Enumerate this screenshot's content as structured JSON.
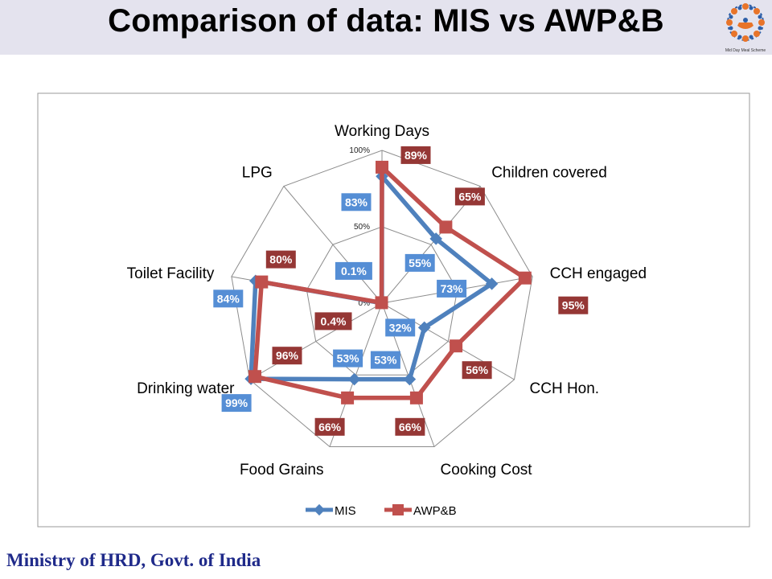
{
  "slide": {
    "title": "Comparison of data: MIS vs AWP&B",
    "footer": "Ministry of HRD, Govt. of India",
    "logo_icon": "mid-day-meal-scheme-logo",
    "logo_caption": "Mid Day Meal Scheme"
  },
  "colors": {
    "header_bg": "#e4e3ee",
    "mis": "#4f81bd",
    "awpb": "#c0504d",
    "mis_label_bg": "#558ed5",
    "awpb_label_bg": "#953735",
    "footer_text": "#1f2a8a"
  },
  "chart_data": {
    "type": "radar",
    "categories": [
      "Working Days",
      "Children covered",
      "CCH engaged",
      "CCH Hon.",
      "Cooking Cost",
      "Food Grains",
      "Drinking water",
      "Toilet Facility",
      "LPG"
    ],
    "tick_labels": [
      "0%",
      "50%",
      "100%"
    ],
    "rlim": [
      0,
      100
    ],
    "grid": true,
    "legend_position": "bottom",
    "series": [
      {
        "name": "MIS",
        "values": [
          83,
          55,
          73,
          32,
          53,
          53,
          99,
          84,
          0.1
        ],
        "labels": [
          "83%",
          "55%",
          "73%",
          "32%",
          "53%",
          "53%",
          "99%",
          "84%",
          "0.1%"
        ]
      },
      {
        "name": "AWP&B",
        "values": [
          89,
          65,
          95,
          56,
          66,
          66,
          96,
          80,
          0.4
        ],
        "labels": [
          "89%",
          "65%",
          "95%",
          "56%",
          "66%",
          "66%",
          "96%",
          "80%",
          "0.4%"
        ]
      }
    ]
  }
}
